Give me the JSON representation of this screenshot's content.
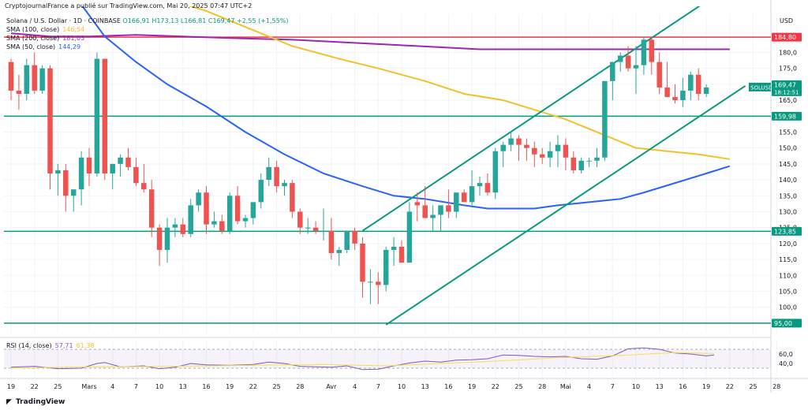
{
  "header": {
    "publisher": "CryptojournalFrance a publié sur TradingView.com, Mai 20, 2025 07:47 UTC+2",
    "symbol_line": "Solana / U.S. Dollar · 1D · COINBASE",
    "ohlc": {
      "o": "O166,91",
      "h": "H173,13",
      "l": "L166,81",
      "c": "C169,47",
      "chg": "+2,55 (+1,55%)"
    }
  },
  "legend": [
    {
      "label": "SMA (100, close)",
      "value": "146,54",
      "color": "#f5c028"
    },
    {
      "label": "SMA (200, close)",
      "value": "181,03",
      "color": "#9c27b0"
    },
    {
      "label": "SMA (50, close)",
      "value": "144,29",
      "color": "#2962ff"
    }
  ],
  "rsi_legend": {
    "label": "RSI (14, close)",
    "value": "57,71",
    "value2": "61,38"
  },
  "footer": {
    "brand": "TradingView"
  },
  "chart_data": {
    "type": "candlestick",
    "currency": "USD",
    "ylim": [
      92,
      192
    ],
    "y_ticks": [
      95,
      100,
      105,
      110,
      115,
      120,
      125,
      130,
      135,
      140,
      145,
      150,
      155,
      160,
      165,
      170,
      175,
      180,
      185
    ],
    "x_ticks": [
      {
        "i": 0,
        "label": "19"
      },
      {
        "i": 3,
        "label": "22"
      },
      {
        "i": 6,
        "label": "25"
      },
      {
        "i": 10,
        "label": "Mars"
      },
      {
        "i": 13,
        "label": "4"
      },
      {
        "i": 16,
        "label": "7"
      },
      {
        "i": 19,
        "label": "10"
      },
      {
        "i": 22,
        "label": "13"
      },
      {
        "i": 25,
        "label": "16"
      },
      {
        "i": 28,
        "label": "19"
      },
      {
        "i": 31,
        "label": "22"
      },
      {
        "i": 34,
        "label": "25"
      },
      {
        "i": 37,
        "label": "28"
      },
      {
        "i": 41,
        "label": "Avr"
      },
      {
        "i": 44,
        "label": "4"
      },
      {
        "i": 47,
        "label": "7"
      },
      {
        "i": 50,
        "label": "10"
      },
      {
        "i": 53,
        "label": "13"
      },
      {
        "i": 56,
        "label": "16"
      },
      {
        "i": 59,
        "label": "19"
      },
      {
        "i": 62,
        "label": "22"
      },
      {
        "i": 65,
        "label": "25"
      },
      {
        "i": 68,
        "label": "28"
      },
      {
        "i": 71,
        "label": "Mai"
      },
      {
        "i": 74,
        "label": "4"
      },
      {
        "i": 77,
        "label": "7"
      },
      {
        "i": 80,
        "label": "10"
      },
      {
        "i": 83,
        "label": "13"
      },
      {
        "i": 86,
        "label": "16"
      },
      {
        "i": 89,
        "label": "19"
      },
      {
        "i": 92,
        "label": "22"
      },
      {
        "i": 95,
        "label": "25"
      },
      {
        "i": 98,
        "label": "28"
      }
    ],
    "candles": [
      [
        177,
        178,
        165,
        168
      ],
      [
        168,
        173,
        162,
        167
      ],
      [
        167,
        178,
        165,
        176
      ],
      [
        176,
        180,
        167,
        168
      ],
      [
        168,
        176,
        167,
        175
      ],
      [
        175,
        176,
        137,
        142
      ],
      [
        142,
        145,
        135,
        143
      ],
      [
        143,
        145,
        130,
        135
      ],
      [
        135,
        137,
        130,
        137
      ],
      [
        137,
        149,
        132,
        147
      ],
      [
        147,
        150,
        138,
        142
      ],
      [
        142,
        180,
        141,
        178
      ],
      [
        178,
        178,
        140,
        142
      ],
      [
        142,
        145,
        137,
        145
      ],
      [
        145,
        148,
        141,
        147
      ],
      [
        147,
        150,
        143,
        144
      ],
      [
        144,
        147,
        138,
        139
      ],
      [
        139,
        145,
        136,
        137
      ],
      [
        137,
        140,
        122,
        125
      ],
      [
        125,
        126,
        113,
        118
      ],
      [
        118,
        128,
        114,
        125
      ],
      [
        125,
        128,
        122,
        126
      ],
      [
        126,
        128,
        122,
        123
      ],
      [
        123,
        134,
        122,
        132
      ],
      [
        132,
        137,
        130,
        136
      ],
      [
        136,
        138,
        123,
        126
      ],
      [
        126,
        130,
        125,
        127
      ],
      [
        127,
        129,
        123,
        124
      ],
      [
        124,
        136,
        123,
        135
      ],
      [
        135,
        138,
        126,
        127
      ],
      [
        127,
        129,
        125,
        128
      ],
      [
        128,
        133,
        126,
        133
      ],
      [
        133,
        142,
        131,
        140
      ],
      [
        140,
        147,
        138,
        144
      ],
      [
        144,
        146,
        136,
        138
      ],
      [
        138,
        140,
        135,
        139
      ],
      [
        139,
        140,
        128,
        130
      ],
      [
        130,
        131,
        123,
        125
      ],
      [
        125,
        128,
        123,
        125
      ],
      [
        125,
        127,
        123,
        124
      ],
      [
        124,
        131,
        121,
        124
      ],
      [
        124,
        128,
        115,
        117
      ],
      [
        117,
        119,
        113,
        118
      ],
      [
        118,
        124,
        117,
        124
      ],
      [
        124,
        125,
        118,
        120
      ],
      [
        120,
        122,
        103,
        108
      ],
      [
        108,
        112,
        101,
        108
      ],
      [
        108,
        111,
        101,
        107
      ],
      [
        107,
        119,
        105,
        118
      ],
      [
        118,
        122,
        113,
        119
      ],
      [
        119,
        121,
        114,
        114
      ],
      [
        114,
        133,
        115,
        130
      ],
      [
        133,
        136,
        127,
        132
      ],
      [
        132,
        138,
        129,
        128
      ],
      [
        128,
        132,
        124,
        129
      ],
      [
        129,
        132,
        124,
        132
      ],
      [
        132,
        137,
        128,
        130
      ],
      [
        130,
        136,
        128,
        136
      ],
      [
        136,
        137,
        133,
        133
      ],
      [
        133,
        143,
        132,
        138
      ],
      [
        138,
        141,
        135,
        139
      ],
      [
        139,
        142,
        135,
        136
      ],
      [
        136,
        150,
        134,
        149
      ],
      [
        149,
        152,
        144,
        151
      ],
      [
        151,
        155,
        149,
        153
      ],
      [
        153,
        154,
        146,
        151
      ],
      [
        151,
        153,
        146,
        150
      ],
      [
        150,
        152,
        144,
        148
      ],
      [
        148,
        150,
        145,
        147
      ],
      [
        147,
        152,
        144,
        149
      ],
      [
        149,
        154,
        144,
        151
      ],
      [
        151,
        153,
        143,
        147
      ],
      [
        147,
        149,
        142,
        143
      ],
      [
        143,
        147,
        142,
        146
      ],
      [
        146,
        147,
        144,
        146
      ],
      [
        146,
        150,
        144,
        147
      ],
      [
        147,
        171,
        146,
        171
      ],
      [
        171,
        176,
        165,
        177
      ],
      [
        177,
        180,
        174,
        179
      ],
      [
        179,
        182,
        174,
        175
      ],
      [
        175,
        182,
        167,
        176
      ],
      [
        176,
        185,
        173,
        184
      ],
      [
        184,
        185,
        173,
        177
      ],
      [
        177,
        180,
        167,
        169
      ],
      [
        169,
        177,
        166,
        166
      ],
      [
        166,
        170,
        164,
        165
      ],
      [
        165,
        172,
        163,
        168
      ],
      [
        168,
        174,
        165,
        173
      ],
      [
        173,
        175,
        165,
        167
      ],
      [
        167,
        170,
        166,
        169
      ]
    ],
    "sma50": [
      [
        9,
        195
      ],
      [
        12,
        185
      ],
      [
        16,
        177
      ],
      [
        20,
        170
      ],
      [
        25,
        163
      ],
      [
        30,
        155
      ],
      [
        35,
        148
      ],
      [
        40,
        142
      ],
      [
        45,
        138
      ],
      [
        49,
        135
      ],
      [
        53,
        134
      ],
      [
        58,
        132
      ],
      [
        61,
        131
      ],
      [
        64,
        131
      ],
      [
        67,
        131
      ],
      [
        70,
        132
      ],
      [
        74,
        133
      ],
      [
        78,
        134
      ],
      [
        81,
        136
      ],
      [
        85,
        139
      ],
      [
        89,
        142
      ],
      [
        92,
        144.3
      ]
    ],
    "sma100": [
      [
        21,
        196
      ],
      [
        25,
        193
      ],
      [
        30,
        188
      ],
      [
        36,
        182
      ],
      [
        42,
        178
      ],
      [
        47,
        175
      ],
      [
        53,
        171
      ],
      [
        58,
        167
      ],
      [
        63,
        165
      ],
      [
        67,
        162
      ],
      [
        71,
        159
      ],
      [
        76,
        154
      ],
      [
        80,
        150
      ],
      [
        84,
        149
      ],
      [
        88,
        148
      ],
      [
        92,
        146.5
      ]
    ],
    "sma200": [
      [
        0,
        186
      ],
      [
        5,
        185
      ],
      [
        10,
        185
      ],
      [
        16,
        185.5
      ],
      [
        22,
        185
      ],
      [
        28,
        184.5
      ],
      [
        36,
        184
      ],
      [
        44,
        183
      ],
      [
        52,
        182
      ],
      [
        60,
        181
      ],
      [
        68,
        181
      ],
      [
        76,
        181
      ],
      [
        84,
        181
      ],
      [
        92,
        181
      ]
    ],
    "channel_upper": [
      [
        45,
        124
      ],
      [
        89,
        196
      ]
    ],
    "channel_lower": [
      [
        48,
        94.5
      ],
      [
        94,
        169.5
      ]
    ],
    "hlines": [
      {
        "value": 184.8,
        "label": "184,80",
        "color": "#f23645"
      },
      {
        "value": 159.98,
        "label": "159,98",
        "color": "#089981"
      },
      {
        "value": 123.85,
        "label": "123,85",
        "color": "#089981"
      },
      {
        "value": 95.0,
        "label": "95,00",
        "color": "#089981"
      }
    ],
    "last_price": {
      "label": "SOLUSD",
      "value": "169,47",
      "timer": "18:12:51"
    },
    "rsi": {
      "ylim": [
        20,
        80
      ],
      "ticks": [
        40,
        60
      ],
      "band": [
        30,
        70
      ],
      "values": [
        [
          0,
          32
        ],
        [
          3,
          34
        ],
        [
          6,
          29
        ],
        [
          9,
          30
        ],
        [
          11,
          40
        ],
        [
          12,
          42
        ],
        [
          14,
          33
        ],
        [
          17,
          35
        ],
        [
          19,
          29
        ],
        [
          21,
          32
        ],
        [
          23,
          40
        ],
        [
          25,
          37
        ],
        [
          28,
          36
        ],
        [
          31,
          38
        ],
        [
          33,
          43
        ],
        [
          35,
          40
        ],
        [
          37,
          34
        ],
        [
          39,
          33
        ],
        [
          41,
          32
        ],
        [
          43,
          35
        ],
        [
          45,
          27
        ],
        [
          47,
          28
        ],
        [
          49,
          35
        ],
        [
          51,
          41
        ],
        [
          53,
          45
        ],
        [
          55,
          43
        ],
        [
          57,
          47
        ],
        [
          59,
          48
        ],
        [
          61,
          50
        ],
        [
          63,
          58
        ],
        [
          65,
          57
        ],
        [
          67,
          55
        ],
        [
          69,
          54
        ],
        [
          71,
          55
        ],
        [
          73,
          50
        ],
        [
          75,
          49
        ],
        [
          77,
          56
        ],
        [
          79,
          71
        ],
        [
          81,
          73
        ],
        [
          83,
          70
        ],
        [
          85,
          62
        ],
        [
          87,
          60
        ],
        [
          89,
          56
        ],
        [
          90,
          58
        ]
      ],
      "signal": [
        [
          0,
          30
        ],
        [
          10,
          33
        ],
        [
          20,
          34
        ],
        [
          30,
          36
        ],
        [
          40,
          38
        ],
        [
          48,
          35
        ],
        [
          55,
          40
        ],
        [
          62,
          45
        ],
        [
          70,
          52
        ],
        [
          78,
          57
        ],
        [
          85,
          63
        ],
        [
          90,
          61
        ]
      ]
    }
  }
}
